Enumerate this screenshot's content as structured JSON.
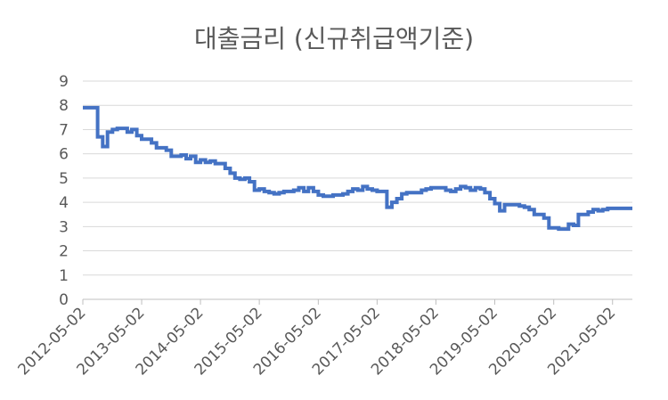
{
  "chart_data": {
    "type": "line",
    "title": "대출금리 (신규취급액기준)",
    "xlabel": "",
    "ylabel": "",
    "ylim": [
      0,
      9
    ],
    "yticks": [
      0,
      1,
      2,
      3,
      4,
      5,
      6,
      7,
      8,
      9
    ],
    "xtick_labels": [
      "2012-05-02",
      "2013-05-02",
      "2014-05-02",
      "2015-05-02",
      "2016-05-02",
      "2017-05-02",
      "2018-05-02",
      "2019-05-02",
      "2020-05-02",
      "2021-05-02"
    ],
    "grid": "horizontal",
    "legend": "none",
    "line_color": "#4472C4",
    "step": true,
    "x_start": "2012-05-02",
    "x_end": "2021-09-02",
    "points": [
      [
        "2012-05-02",
        7.9
      ],
      [
        "2012-06-02",
        7.9
      ],
      [
        "2012-07-02",
        7.9
      ],
      [
        "2012-08-02",
        6.7
      ],
      [
        "2012-09-02",
        6.3
      ],
      [
        "2012-10-02",
        6.9
      ],
      [
        "2012-11-02",
        7.0
      ],
      [
        "2012-12-02",
        7.05
      ],
      [
        "2013-01-02",
        7.05
      ],
      [
        "2013-02-02",
        6.9
      ],
      [
        "2013-03-02",
        7.0
      ],
      [
        "2013-04-02",
        6.75
      ],
      [
        "2013-05-02",
        6.6
      ],
      [
        "2013-06-02",
        6.6
      ],
      [
        "2013-07-02",
        6.45
      ],
      [
        "2013-08-02",
        6.25
      ],
      [
        "2013-09-02",
        6.25
      ],
      [
        "2013-10-02",
        6.15
      ],
      [
        "2013-11-02",
        5.9
      ],
      [
        "2013-12-02",
        5.9
      ],
      [
        "2014-01-02",
        5.95
      ],
      [
        "2014-02-02",
        5.8
      ],
      [
        "2014-03-02",
        5.9
      ],
      [
        "2014-04-02",
        5.65
      ],
      [
        "2014-05-02",
        5.75
      ],
      [
        "2014-06-02",
        5.65
      ],
      [
        "2014-07-02",
        5.7
      ],
      [
        "2014-08-02",
        5.6
      ],
      [
        "2014-09-02",
        5.6
      ],
      [
        "2014-10-02",
        5.4
      ],
      [
        "2014-11-02",
        5.2
      ],
      [
        "2014-12-02",
        5.0
      ],
      [
        "2015-01-02",
        4.95
      ],
      [
        "2015-02-02",
        5.0
      ],
      [
        "2015-03-02",
        4.85
      ],
      [
        "2015-04-02",
        4.5
      ],
      [
        "2015-05-02",
        4.55
      ],
      [
        "2015-06-02",
        4.45
      ],
      [
        "2015-07-02",
        4.4
      ],
      [
        "2015-08-02",
        4.35
      ],
      [
        "2015-09-02",
        4.4
      ],
      [
        "2015-10-02",
        4.45
      ],
      [
        "2015-11-02",
        4.45
      ],
      [
        "2015-12-02",
        4.5
      ],
      [
        "2016-01-02",
        4.6
      ],
      [
        "2016-02-02",
        4.45
      ],
      [
        "2016-03-02",
        4.6
      ],
      [
        "2016-04-02",
        4.45
      ],
      [
        "2016-05-02",
        4.3
      ],
      [
        "2016-06-02",
        4.25
      ],
      [
        "2016-07-02",
        4.25
      ],
      [
        "2016-08-02",
        4.3
      ],
      [
        "2016-09-02",
        4.3
      ],
      [
        "2016-10-02",
        4.35
      ],
      [
        "2016-11-02",
        4.45
      ],
      [
        "2016-12-02",
        4.55
      ],
      [
        "2017-01-02",
        4.5
      ],
      [
        "2017-02-02",
        4.65
      ],
      [
        "2017-03-02",
        4.55
      ],
      [
        "2017-04-02",
        4.5
      ],
      [
        "2017-05-02",
        4.45
      ],
      [
        "2017-06-02",
        4.45
      ],
      [
        "2017-07-02",
        3.8
      ],
      [
        "2017-08-02",
        4.0
      ],
      [
        "2017-09-02",
        4.15
      ],
      [
        "2017-10-02",
        4.35
      ],
      [
        "2017-11-02",
        4.4
      ],
      [
        "2017-12-02",
        4.4
      ],
      [
        "2018-01-02",
        4.4
      ],
      [
        "2018-02-02",
        4.5
      ],
      [
        "2018-03-02",
        4.55
      ],
      [
        "2018-04-02",
        4.6
      ],
      [
        "2018-05-02",
        4.6
      ],
      [
        "2018-06-02",
        4.6
      ],
      [
        "2018-07-02",
        4.5
      ],
      [
        "2018-08-02",
        4.45
      ],
      [
        "2018-09-02",
        4.55
      ],
      [
        "2018-10-02",
        4.65
      ],
      [
        "2018-11-02",
        4.6
      ],
      [
        "2018-12-02",
        4.5
      ],
      [
        "2019-01-02",
        4.6
      ],
      [
        "2019-02-02",
        4.55
      ],
      [
        "2019-03-02",
        4.4
      ],
      [
        "2019-04-02",
        4.15
      ],
      [
        "2019-05-02",
        3.95
      ],
      [
        "2019-06-02",
        3.65
      ],
      [
        "2019-07-02",
        3.9
      ],
      [
        "2019-08-02",
        3.9
      ],
      [
        "2019-09-02",
        3.9
      ],
      [
        "2019-10-02",
        3.85
      ],
      [
        "2019-11-02",
        3.8
      ],
      [
        "2019-12-02",
        3.7
      ],
      [
        "2020-01-02",
        3.5
      ],
      [
        "2020-02-02",
        3.5
      ],
      [
        "2020-03-02",
        3.35
      ],
      [
        "2020-04-02",
        2.95
      ],
      [
        "2020-05-02",
        2.95
      ],
      [
        "2020-06-02",
        2.9
      ],
      [
        "2020-07-02",
        2.9
      ],
      [
        "2020-08-02",
        3.1
      ],
      [
        "2020-09-02",
        3.05
      ],
      [
        "2020-10-02",
        3.5
      ],
      [
        "2020-11-02",
        3.5
      ],
      [
        "2020-12-02",
        3.6
      ],
      [
        "2021-01-02",
        3.7
      ],
      [
        "2021-02-02",
        3.65
      ],
      [
        "2021-03-02",
        3.7
      ],
      [
        "2021-04-02",
        3.75
      ],
      [
        "2021-05-02",
        3.75
      ],
      [
        "2021-06-02",
        3.75
      ],
      [
        "2021-07-02",
        3.75
      ],
      [
        "2021-08-02",
        3.75
      ]
    ]
  }
}
